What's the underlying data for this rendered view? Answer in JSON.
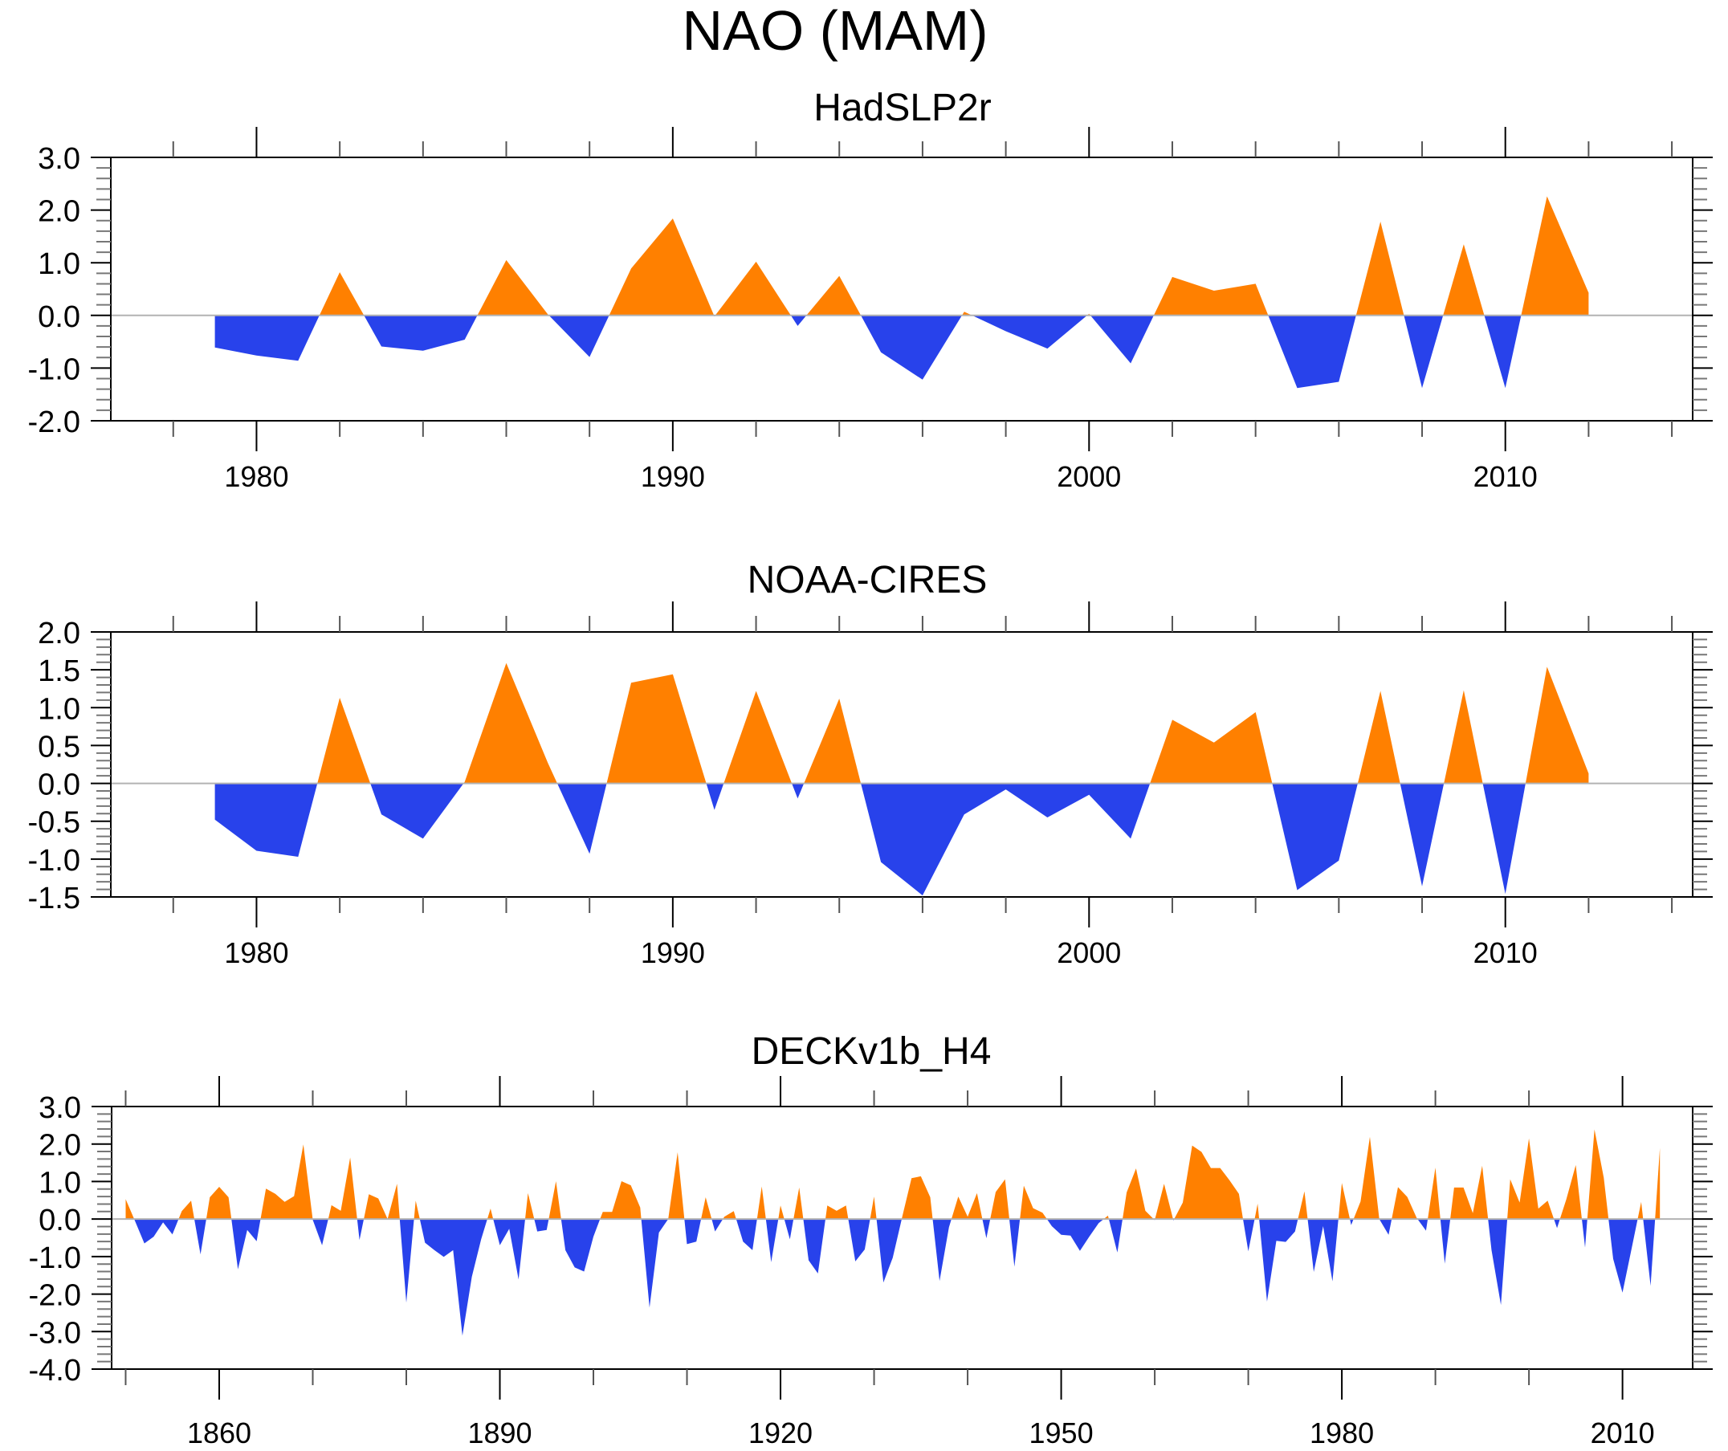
{
  "figure": {
    "title": "NAO (MAM)",
    "colors": {
      "positive": "#ff8000",
      "negative": "#2842eb",
      "zero_line": "#b3b3b3",
      "axis": "#000000"
    }
  },
  "chart_data": [
    {
      "type": "area",
      "title": "HadSLP2r",
      "xlabel": "",
      "ylabel": "",
      "xlim": [
        1976.5,
        2014.5
      ],
      "ylim": [
        -2.0,
        3.0
      ],
      "yticks": [
        -2.0,
        -1.0,
        0.0,
        1.0,
        2.0,
        3.0
      ],
      "ytick_labels": [
        "-2.0",
        "-1.0",
        "0.0",
        "1.0",
        "2.0",
        "3.0"
      ],
      "yminor_step": 0.2,
      "xticks_major": [
        1980,
        1990,
        2000,
        2010
      ],
      "xtick_labels": [
        "1980",
        "1990",
        "2000",
        "2010"
      ],
      "xticks_minor_step": 2,
      "grid": false,
      "fill_positive": "orange",
      "fill_negative": "blue",
      "x": [
        1979,
        1980,
        1981,
        1982,
        1983,
        1984,
        1985,
        1986,
        1987,
        1988,
        1989,
        1990,
        1991,
        1992,
        1993,
        1994,
        1995,
        1996,
        1997,
        1998,
        1999,
        2000,
        2001,
        2002,
        2003,
        2004,
        2005,
        2006,
        2007,
        2008,
        2009,
        2010,
        2011,
        2012
      ],
      "values": [
        -0.61,
        -0.76,
        -0.86,
        0.82,
        -0.59,
        -0.67,
        -0.46,
        1.05,
        0.02,
        -0.79,
        0.89,
        1.84,
        -0.02,
        1.02,
        -0.2,
        0.75,
        -0.7,
        -1.22,
        0.07,
        -0.3,
        -0.63,
        0.03,
        -0.91,
        0.73,
        0.47,
        0.6,
        -1.38,
        -1.26,
        1.78,
        -1.38,
        1.35,
        -1.38,
        2.26,
        0.43
      ]
    },
    {
      "type": "area",
      "title": "NOAA-CIRES",
      "xlabel": "",
      "ylabel": "",
      "xlim": [
        1976.5,
        2014.5
      ],
      "ylim": [
        -1.5,
        2.0
      ],
      "yticks": [
        -1.5,
        -1.0,
        -0.5,
        0.0,
        0.5,
        1.0,
        1.5,
        2.0
      ],
      "ytick_labels": [
        "-1.5",
        "-1.0",
        "-0.5",
        "0.0",
        "0.5",
        "1.0",
        "1.5",
        "2.0"
      ],
      "yminor_step": 0.1,
      "xticks_major": [
        1980,
        1990,
        2000,
        2010
      ],
      "xtick_labels": [
        "1980",
        "1990",
        "2000",
        "2010"
      ],
      "xticks_minor_step": 2,
      "grid": false,
      "fill_positive": "orange",
      "fill_negative": "blue",
      "x": [
        1979,
        1980,
        1981,
        1982,
        1983,
        1984,
        1985,
        1986,
        1987,
        1988,
        1989,
        1990,
        1991,
        1992,
        1993,
        1994,
        1995,
        1996,
        1997,
        1998,
        1999,
        2000,
        2001,
        2002,
        2003,
        2004,
        2005,
        2006,
        2007,
        2008,
        2009,
        2010,
        2011,
        2012
      ],
      "values": [
        -0.48,
        -0.89,
        -0.97,
        1.13,
        -0.41,
        -0.73,
        0.02,
        1.59,
        0.27,
        -0.93,
        1.33,
        1.44,
        -0.35,
        1.22,
        -0.2,
        1.12,
        -1.04,
        -1.48,
        -0.41,
        -0.08,
        -0.45,
        -0.15,
        -0.73,
        0.84,
        0.54,
        0.94,
        -1.41,
        -1.02,
        1.22,
        -1.36,
        1.23,
        -1.46,
        1.54,
        0.13
      ]
    },
    {
      "type": "area",
      "title": "DECKv1b_H4",
      "xlabel": "",
      "ylabel": "",
      "xlim": [
        1848.5,
        2017.5
      ],
      "ylim": [
        -4.0,
        3.0
      ],
      "yticks": [
        -4.0,
        -3.0,
        -2.0,
        -1.0,
        0.0,
        1.0,
        2.0,
        3.0
      ],
      "ytick_labels": [
        "-4.0",
        "-3.0",
        "-2.0",
        "-1.0",
        "0.0",
        "1.0",
        "2.0",
        "3.0"
      ],
      "yminor_step": 0.2,
      "xticks_major": [
        1860,
        1890,
        1920,
        1950,
        1980,
        2010
      ],
      "xtick_labels": [
        "1860",
        "1890",
        "1920",
        "1950",
        "1980",
        "2010"
      ],
      "xticks_minor_step": 10,
      "grid": false,
      "fill_positive": "orange",
      "fill_negative": "blue",
      "x_start": 1850,
      "values": [
        0.53,
        -0.05,
        -0.65,
        -0.47,
        -0.09,
        -0.41,
        0.21,
        0.49,
        -0.94,
        0.58,
        0.86,
        0.58,
        -1.34,
        -0.29,
        -0.59,
        0.81,
        0.67,
        0.46,
        0.61,
        1.99,
        -0.02,
        -0.7,
        0.37,
        0.22,
        1.64,
        -0.56,
        0.66,
        0.55,
        0.0,
        0.94,
        -2.23,
        0.49,
        -0.63,
        -0.83,
        -1.01,
        -0.83,
        -3.11,
        -1.54,
        -0.54,
        0.28,
        -0.7,
        -0.26,
        -1.61,
        0.69,
        -0.33,
        -0.29,
        1.01,
        -0.83,
        -1.29,
        -1.4,
        -0.47,
        0.19,
        0.19,
        1.01,
        0.9,
        0.31,
        -2.36,
        -0.36,
        0.0,
        1.78,
        -0.67,
        -0.6,
        0.58,
        -0.33,
        0.06,
        0.21,
        -0.6,
        -0.83,
        0.87,
        -1.15,
        0.36,
        -0.54,
        0.84,
        -1.1,
        -1.45,
        0.36,
        0.22,
        0.36,
        -1.13,
        -0.81,
        0.6,
        -1.69,
        -1.03,
        0.05,
        1.09,
        1.14,
        0.58,
        -1.65,
        -0.22,
        0.6,
        0.06,
        0.69,
        -0.51,
        0.72,
        1.06,
        -1.27,
        0.89,
        0.29,
        0.17,
        -0.19,
        -0.42,
        -0.44,
        -0.85,
        -0.47,
        -0.11,
        0.09,
        -0.89,
        0.71,
        1.35,
        0.22,
        -0.03,
        0.94,
        -0.04,
        0.44,
        1.96,
        1.79,
        1.36,
        1.36,
        1.03,
        0.67,
        -0.86,
        0.41,
        -2.2,
        -0.58,
        -0.61,
        -0.33,
        0.74,
        -1.41,
        -0.19,
        -1.66,
        0.96,
        -0.16,
        0.47,
        2.19,
        0.0,
        -0.42,
        0.85,
        0.59,
        0.03,
        -0.31,
        1.37,
        -1.19,
        0.84,
        0.84,
        0.16,
        1.42,
        -0.83,
        -2.29,
        1.06,
        0.44,
        2.15,
        0.28,
        0.49,
        -0.24,
        0.53,
        1.44,
        -0.76,
        2.39,
        1.1,
        -1.06,
        -1.96,
        -0.75,
        0.46,
        -1.78,
        1.9
      ]
    }
  ]
}
